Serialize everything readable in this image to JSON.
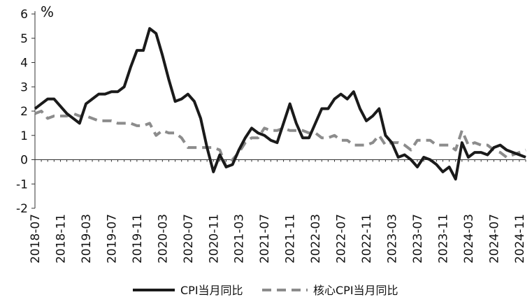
{
  "chart_data": {
    "type": "line",
    "unit": "%",
    "ylim": [
      -2,
      6
    ],
    "yticks": [
      "-2",
      "-1",
      "0",
      "1",
      "2",
      "3",
      "4",
      "5",
      "6"
    ],
    "x_tick_labels": [
      "2018-07",
      "2018-11",
      "2019-03",
      "2019-07",
      "2019-11",
      "2020-03",
      "2020-07",
      "2020-11",
      "2021-03",
      "2021-07",
      "2021-11",
      "2022-03",
      "2022-07",
      "2022-11",
      "2023-03",
      "2023-07",
      "2023-11",
      "2024-03",
      "2024-07",
      "2024-11"
    ],
    "x": [
      "2018-07",
      "2018-08",
      "2018-09",
      "2018-10",
      "2018-11",
      "2018-12",
      "2019-01",
      "2019-02",
      "2019-03",
      "2019-04",
      "2019-05",
      "2019-06",
      "2019-07",
      "2019-08",
      "2019-09",
      "2019-10",
      "2019-11",
      "2019-12",
      "2020-01",
      "2020-02",
      "2020-03",
      "2020-04",
      "2020-05",
      "2020-06",
      "2020-07",
      "2020-08",
      "2020-09",
      "2020-10",
      "2020-11",
      "2020-12",
      "2021-01",
      "2021-02",
      "2021-03",
      "2021-04",
      "2021-05",
      "2021-06",
      "2021-07",
      "2021-08",
      "2021-09",
      "2021-10",
      "2021-11",
      "2021-12",
      "2022-01",
      "2022-02",
      "2022-03",
      "2022-04",
      "2022-05",
      "2022-06",
      "2022-07",
      "2022-08",
      "2022-09",
      "2022-10",
      "2022-11",
      "2022-12",
      "2023-01",
      "2023-02",
      "2023-03",
      "2023-04",
      "2023-05",
      "2023-06",
      "2023-07",
      "2023-08",
      "2023-09",
      "2023-10",
      "2023-11",
      "2023-12",
      "2024-01",
      "2024-02",
      "2024-03",
      "2024-04",
      "2024-05",
      "2024-06",
      "2024-07",
      "2024-08",
      "2024-09",
      "2024-10",
      "2024-11",
      "2024-12"
    ],
    "series": [
      {
        "name": "CPI当月同比",
        "color": "#1a1a1a",
        "dash": "solid",
        "values": [
          2.1,
          2.3,
          2.5,
          2.5,
          2.2,
          1.9,
          1.7,
          1.5,
          2.3,
          2.5,
          2.7,
          2.7,
          2.8,
          2.8,
          3.0,
          3.8,
          4.5,
          4.5,
          5.4,
          5.2,
          4.3,
          3.3,
          2.4,
          2.5,
          2.7,
          2.4,
          1.7,
          0.5,
          -0.5,
          0.2,
          -0.3,
          -0.2,
          0.4,
          0.9,
          1.3,
          1.1,
          1.0,
          0.8,
          0.7,
          1.5,
          2.3,
          1.5,
          0.9,
          0.9,
          1.5,
          2.1,
          2.1,
          2.5,
          2.7,
          2.5,
          2.8,
          2.1,
          1.6,
          1.8,
          2.1,
          1.0,
          0.7,
          0.1,
          0.2,
          0.0,
          -0.3,
          0.1,
          0.0,
          -0.2,
          -0.5,
          -0.3,
          -0.8,
          0.7,
          0.1,
          0.3,
          0.3,
          0.2,
          0.5,
          0.6,
          0.4,
          0.3,
          0.2,
          0.1
        ]
      },
      {
        "name": "核心CPI当月同比",
        "color": "#8c8c8c",
        "dash": "dashed",
        "values": [
          1.9,
          2.0,
          1.7,
          1.8,
          1.8,
          1.8,
          1.9,
          1.8,
          1.8,
          1.7,
          1.6,
          1.6,
          1.6,
          1.5,
          1.5,
          1.5,
          1.4,
          1.4,
          1.5,
          1.0,
          1.2,
          1.1,
          1.1,
          0.9,
          0.5,
          0.5,
          0.5,
          0.5,
          0.5,
          0.4,
          -0.3,
          0.0,
          0.3,
          0.7,
          0.9,
          0.9,
          1.3,
          1.2,
          1.2,
          1.3,
          1.2,
          1.2,
          1.2,
          1.1,
          1.1,
          0.9,
          0.9,
          1.0,
          0.8,
          0.8,
          0.6,
          0.6,
          0.6,
          0.7,
          1.0,
          0.6,
          0.7,
          0.7,
          0.6,
          0.4,
          0.8,
          0.8,
          0.8,
          0.6,
          0.6,
          0.6,
          0.4,
          1.2,
          0.6,
          0.7,
          0.6,
          0.6,
          0.4,
          0.3,
          0.1,
          0.2,
          0.3,
          0.4
        ]
      }
    ],
    "legend": {
      "placement": "bottom"
    },
    "grid": false
  }
}
